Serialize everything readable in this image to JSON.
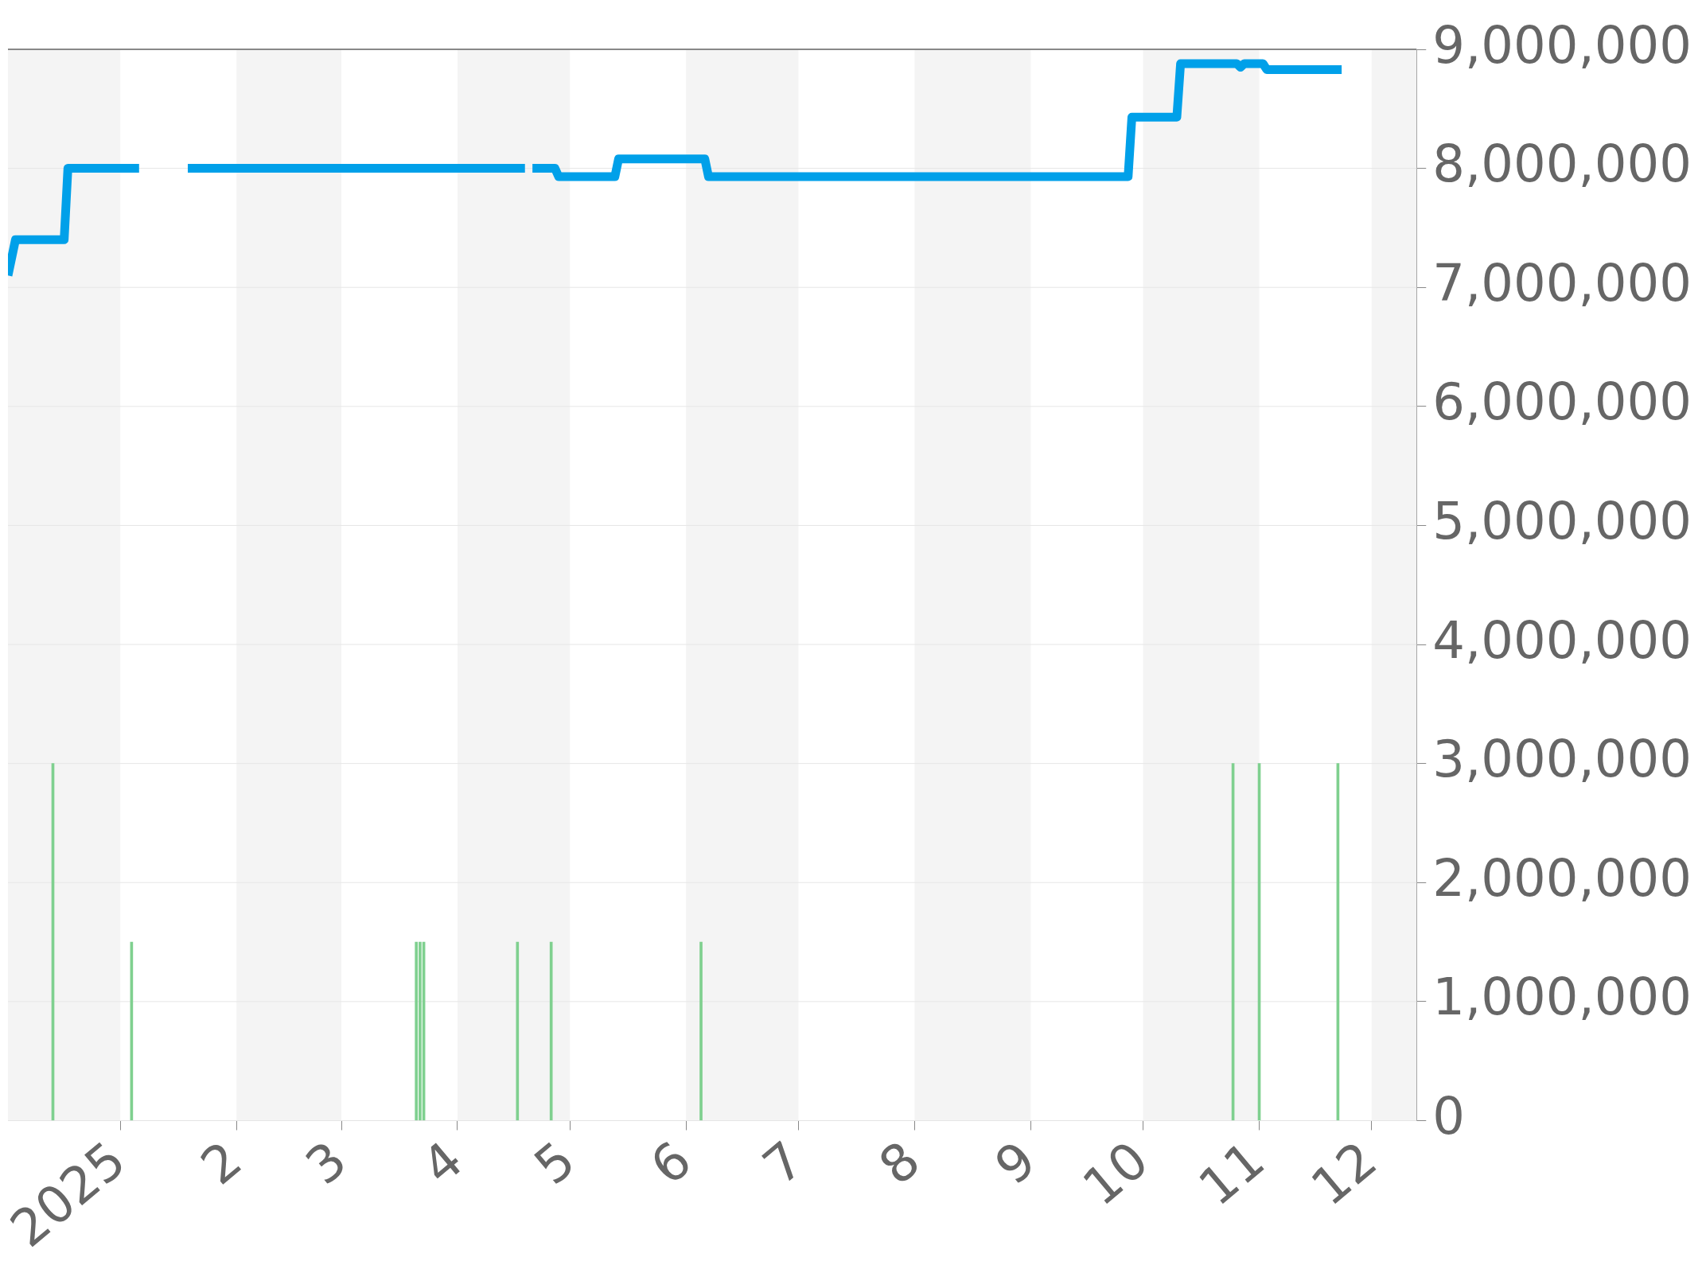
{
  "chart_data": {
    "type": "line",
    "xlim": [
      "2024-12-02",
      "2025-12-13"
    ],
    "xticks": [
      {
        "value": "2025-01-01",
        "label": "2025"
      },
      {
        "value": "2025-02-01",
        "label": "2"
      },
      {
        "value": "2025-03-01",
        "label": "3"
      },
      {
        "value": "2025-04-01",
        "label": "4"
      },
      {
        "value": "2025-05-01",
        "label": "5"
      },
      {
        "value": "2025-06-01",
        "label": "6"
      },
      {
        "value": "2025-07-01",
        "label": "7"
      },
      {
        "value": "2025-08-01",
        "label": "8"
      },
      {
        "value": "2025-09-01",
        "label": "9"
      },
      {
        "value": "2025-10-01",
        "label": "10"
      },
      {
        "value": "2025-11-01",
        "label": "11"
      },
      {
        "value": "2025-12-01",
        "label": "12"
      }
    ],
    "ylim": [
      0,
      9000000
    ],
    "yticks": [
      {
        "value": 0,
        "label": "0"
      },
      {
        "value": 1000000,
        "label": "1,000,000"
      },
      {
        "value": 2000000,
        "label": "2,000,000"
      },
      {
        "value": 3000000,
        "label": "3,000,000"
      },
      {
        "value": 4000000,
        "label": "4,000,000"
      },
      {
        "value": 5000000,
        "label": "5,000,000"
      },
      {
        "value": 6000000,
        "label": "6,000,000"
      },
      {
        "value": 7000000,
        "label": "7,000,000"
      },
      {
        "value": 8000000,
        "label": "8,000,000"
      },
      {
        "value": 9000000,
        "label": "9,000,000"
      }
    ],
    "grid": "y",
    "legend": false,
    "marker": "none",
    "bands": [
      {
        "axis": "x",
        "from": "2024-12-02",
        "to": "2025-01-01",
        "color": "#f4f4f4"
      },
      {
        "axis": "x",
        "from": "2025-02-01",
        "to": "2025-03-01",
        "color": "#f4f4f4"
      },
      {
        "axis": "x",
        "from": "2025-04-01",
        "to": "2025-05-01",
        "color": "#f4f4f4"
      },
      {
        "axis": "x",
        "from": "2025-06-01",
        "to": "2025-07-01",
        "color": "#f4f4f4"
      },
      {
        "axis": "x",
        "from": "2025-08-01",
        "to": "2025-09-01",
        "color": "#f4f4f4"
      },
      {
        "axis": "x",
        "from": "2025-10-01",
        "to": "2025-11-01",
        "color": "#f4f4f4"
      },
      {
        "axis": "x",
        "from": "2025-12-01",
        "to": "2025-12-13",
        "color": "#f4f4f4"
      }
    ],
    "series": [
      {
        "type": "bar",
        "color": "#7fd08f",
        "x": [
          "2024-12-14",
          "2025-01-04",
          "2025-03-21",
          "2025-03-22",
          "2025-03-23",
          "2025-04-17",
          "2025-04-26",
          "2025-06-05",
          "2025-10-25",
          "2025-11-01",
          "2025-11-22"
        ],
        "values": [
          3000000,
          1500000,
          1500000,
          1500000,
          1500000,
          1500000,
          1500000,
          1500000,
          3000000,
          3000000,
          3000000
        ]
      },
      {
        "color": "#00a0e9",
        "x": [
          "2024-12-02",
          "2024-12-04",
          "2024-12-17",
          "2024-12-18",
          "2025-01-06",
          "2025-01-07",
          "2025-01-19",
          "2025-04-19",
          "2025-04-20",
          "2025-04-21",
          "2025-04-27",
          "2025-04-28",
          "2025-05-13",
          "2025-05-14",
          "2025-06-06",
          "2025-06-07",
          "2025-09-27",
          "2025-09-28",
          "2025-10-10",
          "2025-10-11",
          "2025-10-26",
          "2025-10-27",
          "2025-10-28",
          "2025-11-02",
          "2025-11-03",
          "2025-11-23"
        ],
        "values": [
          7100000,
          7400000,
          7400000,
          8000000,
          8000000,
          null,
          8000000,
          8000000,
          null,
          8000000,
          8000000,
          7930000,
          7930000,
          8080000,
          8080000,
          7930000,
          7930000,
          8430000,
          8430000,
          8880000,
          8880000,
          8850000,
          8880000,
          8880000,
          8830000,
          8830000
        ]
      }
    ]
  }
}
